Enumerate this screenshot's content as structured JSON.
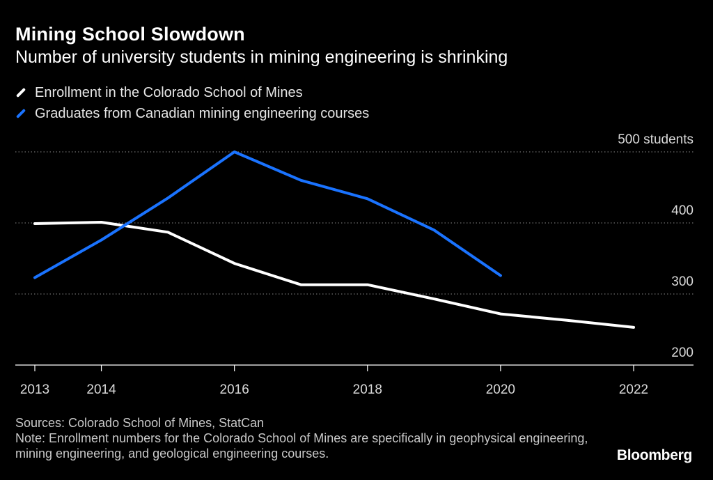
{
  "header": {
    "title": "Mining School Slowdown",
    "subtitle": "Number of university students in mining engineering is shrinking"
  },
  "legend": [
    {
      "label": "Enrollment in the Colorado School of Mines",
      "color": "#ffffff"
    },
    {
      "label": "Graduates from Canadian mining engineering courses",
      "color": "#1a73ff"
    }
  ],
  "chart_data": {
    "type": "line",
    "title": "Mining School Slowdown",
    "subtitle": "Number of university students in mining engineering is shrinking",
    "xlabel": "",
    "ylabel": "",
    "ylim": [
      200,
      500
    ],
    "xlim": [
      2013,
      2022
    ],
    "grid": true,
    "y_ticks": [
      {
        "value": 500,
        "label": "500 students"
      },
      {
        "value": 400,
        "label": "400"
      },
      {
        "value": 300,
        "label": "300"
      },
      {
        "value": 200,
        "label": "200"
      }
    ],
    "x_ticks": [
      2013,
      2014,
      2016,
      2018,
      2020,
      2022
    ],
    "series": [
      {
        "name": "Enrollment in the Colorado School of Mines",
        "color": "#ffffff",
        "x": [
          2013,
          2014,
          2015,
          2016,
          2017,
          2018,
          2019,
          2020,
          2021,
          2022
        ],
        "y": [
          399,
          401,
          387,
          343,
          313,
          313,
          293,
          272,
          263,
          253
        ]
      },
      {
        "name": "Graduates from Canadian mining engineering courses",
        "color": "#1a73ff",
        "x": [
          2013,
          2014,
          2015,
          2016,
          2017,
          2018,
          2019,
          2020
        ],
        "y": [
          323,
          376,
          435,
          500,
          460,
          434,
          390,
          326
        ]
      }
    ]
  },
  "footer": {
    "sources": "Sources: Colorado School of Mines, StatCan",
    "note": "Note: Enrollment numbers for the Colorado School of Mines are specifically in geophysical engineering, mining engineering, and geological engineering courses."
  },
  "brand": "Bloomberg"
}
